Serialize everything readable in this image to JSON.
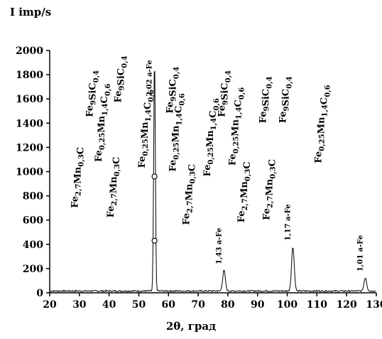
{
  "chart_data": {
    "type": "line",
    "ylabel": "I imp/s",
    "xlabel": "2θ, град",
    "xlim": [
      20,
      130
    ],
    "ylim": [
      0,
      2000
    ],
    "xticks": [
      20,
      30,
      40,
      50,
      60,
      70,
      80,
      90,
      100,
      110,
      120,
      130
    ],
    "yticks": [
      0,
      200,
      400,
      600,
      800,
      1000,
      1200,
      1400,
      1600,
      1800,
      2000
    ],
    "grid": false,
    "baseline": 15,
    "peaks": [
      {
        "x": 55.3,
        "y": 1940,
        "label": "2,02 a-Fe"
      },
      {
        "x": 78.7,
        "y": 185,
        "label": "1,43 a-Fe"
      },
      {
        "x": 101.9,
        "y": 380,
        "label": "1,17 a-Fe"
      },
      {
        "x": 126.3,
        "y": 125,
        "label": "1,01 a-Fe"
      }
    ],
    "markers": [
      {
        "x": 55.3,
        "y": 960
      },
      {
        "x": 55.3,
        "y": 430
      }
    ],
    "phase_labels": [
      {
        "base": "Fe",
        "s1": "2,7",
        "mid": "Mn",
        "s2": "0,3",
        "tail": "C",
        "x": 29.5,
        "y": 700
      },
      {
        "base": "Fe",
        "s1": "9",
        "mid": "SiC",
        "s2": "0,4",
        "tail": "",
        "x": 34.5,
        "y": 1450
      },
      {
        "base": "Fe",
        "s1": "0,25",
        "mid": "Mn",
        "s2": "1,4",
        "tail": "C",
        "s3": "0,6",
        "x": 37.5,
        "y": 1080
      },
      {
        "base": "Fe",
        "s1": "2,7",
        "mid": "Mn",
        "s2": "0,3",
        "tail": "C",
        "x": 41.5,
        "y": 620
      },
      {
        "base": "Fe",
        "s1": "9",
        "mid": "SiC",
        "s2": "0,4",
        "tail": "",
        "x": 44.0,
        "y": 1570
      },
      {
        "base": "Fe",
        "s1": "0,25",
        "mid": "Mn",
        "s2": "1,4",
        "tail": "C",
        "s3": "0,6",
        "x": 52.0,
        "y": 1030
      },
      {
        "base": "Fe",
        "s1": "9",
        "mid": "SiC",
        "s2": "0,4",
        "tail": "",
        "x": 61.5,
        "y": 1480
      },
      {
        "base": "Fe",
        "s1": "0,25",
        "mid": "Mn",
        "s2": "1,4",
        "tail": "C",
        "s3": "0,6",
        "x": 62.5,
        "y": 1000
      },
      {
        "base": "Fe",
        "s1": "2,7",
        "mid": "Mn",
        "s2": "0,3",
        "tail": "C",
        "x": 67.0,
        "y": 560
      },
      {
        "base": "Fe",
        "s1": "0,25",
        "mid": "Mn",
        "s2": "1,4",
        "tail": "C",
        "s3": "0,6",
        "x": 74.0,
        "y": 960
      },
      {
        "base": "Fe",
        "s1": "9",
        "mid": "SiC",
        "s2": "0,4",
        "tail": "",
        "x": 79.0,
        "y": 1450
      },
      {
        "base": "Fe",
        "s1": "0,25",
        "mid": "Mn",
        "s2": "1,4",
        "tail": "C",
        "s3": "0,6",
        "x": 82.5,
        "y": 1050
      },
      {
        "base": "Fe",
        "s1": "2,7",
        "mid": "Mn",
        "s2": "0,3",
        "tail": "C",
        "x": 85.5,
        "y": 580
      },
      {
        "base": "Fe",
        "s1": "9",
        "mid": "SiC",
        "s2": "0,4",
        "tail": "",
        "x": 92.8,
        "y": 1400
      },
      {
        "base": "Fe",
        "s1": "2,7",
        "mid": "Mn",
        "s2": "0,3",
        "tail": "C",
        "x": 94.0,
        "y": 600
      },
      {
        "base": "Fe",
        "s1": "9",
        "mid": "SiC",
        "s2": "0,4",
        "tail": "",
        "x": 99.5,
        "y": 1400
      },
      {
        "base": "Fe",
        "s1": "0,25",
        "mid": "Mn",
        "s2": "1,4",
        "tail": "C",
        "s3": "0,6",
        "x": 111.5,
        "y": 1070
      }
    ],
    "axis_label_positions": "ylabel top-left, xlabel bottom-center"
  }
}
